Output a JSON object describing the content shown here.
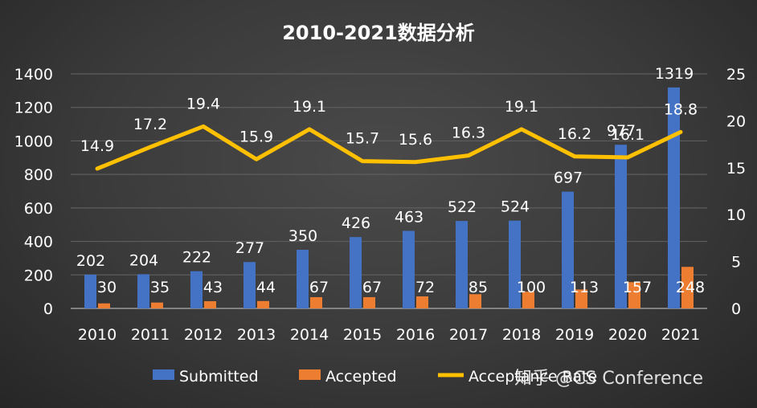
{
  "chart_data": {
    "type": "bar",
    "title": "2010-2021数据分析",
    "categories": [
      "2010",
      "2011",
      "2012",
      "2013",
      "2014",
      "2015",
      "2016",
      "2017",
      "2018",
      "2019",
      "2020",
      "2021"
    ],
    "series": [
      {
        "name": "Submitted",
        "type": "bar",
        "axis": "left",
        "color": "#4472C4",
        "values": [
          202,
          204,
          222,
          277,
          350,
          426,
          463,
          522,
          524,
          697,
          977,
          1319
        ]
      },
      {
        "name": "Accepted",
        "type": "bar",
        "axis": "left",
        "color": "#ED7D31",
        "values": [
          30,
          35,
          43,
          44,
          67,
          67,
          72,
          85,
          100,
          113,
          157,
          248
        ]
      },
      {
        "name": "Acceptance Rate",
        "type": "line",
        "axis": "right",
        "color": "#FFC000",
        "values": [
          14.9,
          17.2,
          19.4,
          15.9,
          19.1,
          15.7,
          15.6,
          16.3,
          19.1,
          16.2,
          16.1,
          18.8
        ]
      }
    ],
    "left_axis": {
      "min": 0,
      "max": 1400,
      "step": 200,
      "ticks": [
        "0",
        "200",
        "400",
        "600",
        "800",
        "1000",
        "1200",
        "1400"
      ]
    },
    "right_axis": {
      "min": 0,
      "max": 25,
      "step": 5,
      "ticks": [
        "0",
        "5",
        "10",
        "15",
        "20",
        "25"
      ]
    },
    "xlabel": "",
    "ylabel": "",
    "grid": true,
    "legend_position": "bottom"
  },
  "legend": [
    {
      "label": "Submitted",
      "color": "#4472C4",
      "kind": "box"
    },
    {
      "label": "Accepted",
      "color": "#ED7D31",
      "kind": "box"
    },
    {
      "label": "Acceptance Rate",
      "color": "#FFC000",
      "kind": "line"
    }
  ],
  "watermark": "知乎 @CS Conference"
}
